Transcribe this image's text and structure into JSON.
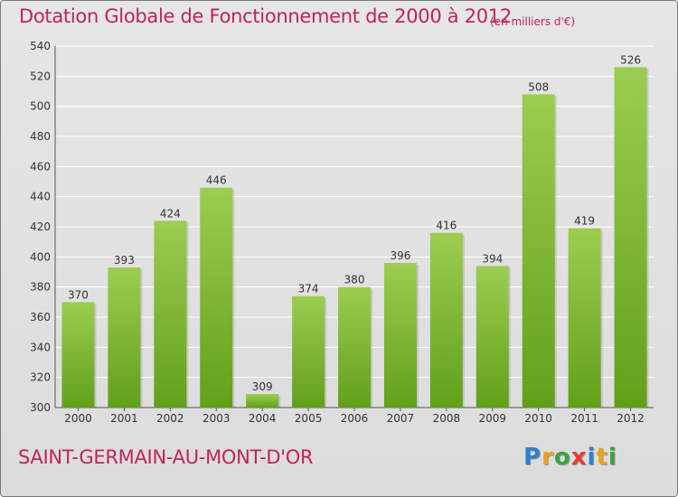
{
  "chart_data": {
    "type": "bar",
    "title": "Dotation Globale de Fonctionnement de 2000 à 2012",
    "subtitle": "(en milliers d'€)",
    "categories": [
      "2000",
      "2001",
      "2002",
      "2003",
      "2004",
      "2005",
      "2006",
      "2007",
      "2008",
      "2009",
      "2010",
      "2011",
      "2012"
    ],
    "values": [
      370,
      393,
      424,
      446,
      309,
      374,
      380,
      396,
      416,
      394,
      508,
      419,
      526
    ],
    "ylim": [
      300,
      540
    ],
    "yticks": [
      300,
      320,
      340,
      360,
      380,
      400,
      420,
      440,
      460,
      480,
      500,
      520,
      540
    ],
    "grid": true,
    "colors": {
      "bar_top": "#9ccd50",
      "bar_bottom": "#62a01a",
      "text_accent": "#c0245a"
    }
  },
  "footer": {
    "commune": "SAINT-GERMAIN-AU-MONT-D'OR",
    "logo_letters": [
      {
        "ch": "P",
        "color": "#2f7fd0"
      },
      {
        "ch": "r",
        "color": "#e9a21f"
      },
      {
        "ch": "o",
        "color": "#3da33d"
      },
      {
        "ch": "x",
        "color": "#e63b2e"
      },
      {
        "ch": "i",
        "color": "#2f7fd0"
      },
      {
        "ch": "t",
        "color": "#e9a21f"
      },
      {
        "ch": "i",
        "color": "#3da33d"
      }
    ]
  }
}
